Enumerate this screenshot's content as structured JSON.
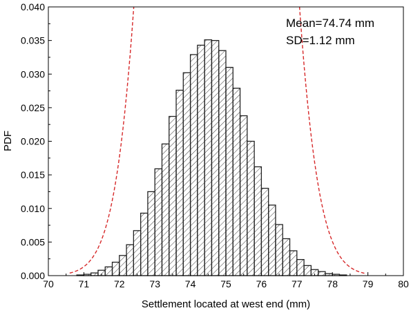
{
  "chart_data": {
    "type": "bar",
    "title": "",
    "xlabel": "Settlement located at west end (mm)",
    "ylabel": "PDF",
    "xlim": [
      70,
      80
    ],
    "ylim": [
      0,
      0.04
    ],
    "x_ticks": [
      "70",
      "71",
      "72",
      "73",
      "74",
      "75",
      "76",
      "77",
      "78",
      "79",
      "80"
    ],
    "y_ticks": [
      "0.000",
      "0.005",
      "0.010",
      "0.015",
      "0.020",
      "0.025",
      "0.030",
      "0.035",
      "0.040"
    ],
    "grid": false,
    "bin_width": 0.2,
    "bins": [
      {
        "x0": 70.8,
        "value": 0.0001
      },
      {
        "x0": 71.0,
        "value": 0.0002
      },
      {
        "x0": 71.2,
        "value": 0.0004
      },
      {
        "x0": 71.4,
        "value": 0.0008
      },
      {
        "x0": 71.6,
        "value": 0.0013
      },
      {
        "x0": 71.8,
        "value": 0.002
      },
      {
        "x0": 72.0,
        "value": 0.003
      },
      {
        "x0": 72.2,
        "value": 0.0046
      },
      {
        "x0": 72.4,
        "value": 0.0067
      },
      {
        "x0": 72.6,
        "value": 0.0093
      },
      {
        "x0": 72.8,
        "value": 0.0125
      },
      {
        "x0": 73.0,
        "value": 0.0159
      },
      {
        "x0": 73.2,
        "value": 0.0196
      },
      {
        "x0": 73.4,
        "value": 0.0237
      },
      {
        "x0": 73.6,
        "value": 0.0276
      },
      {
        "x0": 73.8,
        "value": 0.0302
      },
      {
        "x0": 74.0,
        "value": 0.0329
      },
      {
        "x0": 74.2,
        "value": 0.0343
      },
      {
        "x0": 74.4,
        "value": 0.0351
      },
      {
        "x0": 74.6,
        "value": 0.035
      },
      {
        "x0": 74.8,
        "value": 0.0335
      },
      {
        "x0": 75.0,
        "value": 0.031
      },
      {
        "x0": 75.2,
        "value": 0.0279
      },
      {
        "x0": 75.4,
        "value": 0.0238
      },
      {
        "x0": 75.6,
        "value": 0.02
      },
      {
        "x0": 75.8,
        "value": 0.0162
      },
      {
        "x0": 76.0,
        "value": 0.013
      },
      {
        "x0": 76.2,
        "value": 0.0105
      },
      {
        "x0": 76.4,
        "value": 0.0076
      },
      {
        "x0": 76.6,
        "value": 0.0055
      },
      {
        "x0": 76.8,
        "value": 0.0037
      },
      {
        "x0": 77.0,
        "value": 0.0024
      },
      {
        "x0": 77.2,
        "value": 0.0015
      },
      {
        "x0": 77.4,
        "value": 0.0009
      },
      {
        "x0": 77.6,
        "value": 0.0006
      },
      {
        "x0": 77.8,
        "value": 0.0003
      },
      {
        "x0": 78.0,
        "value": 0.0002
      },
      {
        "x0": 78.2,
        "value": 0.0001
      }
    ],
    "fit_curve": {
      "mean": 74.74,
      "sd": 1.12,
      "color": "#d62728",
      "style": "dashed"
    },
    "annotations": [
      "Mean=74.74 mm",
      "SD=1.12 mm"
    ],
    "hatch": "diagonal",
    "bar_edge_color": "#222222"
  }
}
